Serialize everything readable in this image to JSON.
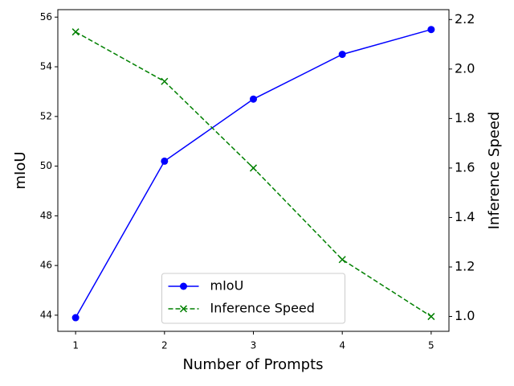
{
  "chart_data": {
    "type": "line",
    "x_label": "Number of Prompts",
    "y_label": "mIoU",
    "y2_label": "Inference Speed",
    "x": [
      1,
      2,
      3,
      4,
      5
    ],
    "xlim": [
      0.8,
      5.2
    ],
    "xticks": [
      1,
      2,
      3,
      4,
      5
    ],
    "ylim": [
      43.35,
      56.3
    ],
    "yticks": [
      44,
      46,
      48,
      50,
      52,
      54,
      56
    ],
    "y2lim": [
      0.94,
      2.24
    ],
    "y2ticks": [
      {
        "value": 1,
        "label": "1.0"
      },
      1.2,
      1.4,
      1.6,
      1.8,
      {
        "value": 2,
        "label": "2.0"
      },
      2.2
    ],
    "legend": "lower center",
    "series": [
      {
        "name": "mIoU",
        "color": "#0000ff",
        "marker": "circle",
        "dash": "solid",
        "values": [
          43.9,
          50.2,
          52.7,
          54.5,
          55.5
        ]
      },
      {
        "name": "Inference Speed",
        "color": "#008000",
        "marker": "x",
        "dash": "dashed",
        "axis": "y2",
        "values": [
          2.15,
          1.95,
          1.6,
          1.23,
          1.0
        ]
      }
    ]
  }
}
